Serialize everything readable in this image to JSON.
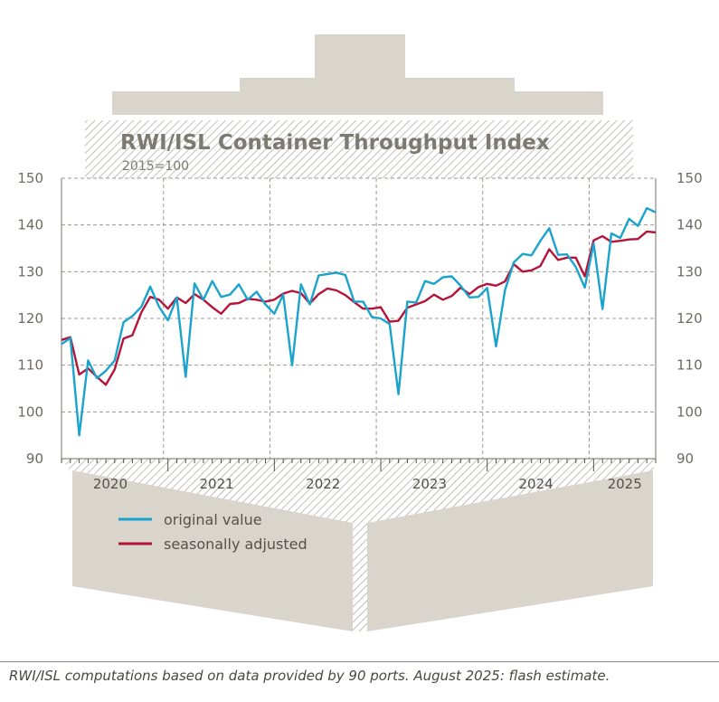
{
  "chart_data": {
    "type": "line",
    "title": "RWI/ISL Container Throughput Index",
    "subtitle": "2015=100",
    "ylim": [
      90,
      150
    ],
    "yticks": [
      90,
      100,
      110,
      120,
      130,
      140,
      150
    ],
    "x_range": [
      "2020-01",
      "2025-08"
    ],
    "year_labels": [
      "2020",
      "2021",
      "2022",
      "2023",
      "2024",
      "2025"
    ],
    "grid": true,
    "legend_position": "bottom-left",
    "colors": {
      "original": "#1aa3cc",
      "adjusted": "#b5143a",
      "ship": "#d9d5cc",
      "text": "#7d7a72"
    },
    "series": [
      {
        "name": "original value",
        "x": [
          "2020-01",
          "2020-02",
          "2020-03",
          "2020-04",
          "2020-05",
          "2020-06",
          "2020-07",
          "2020-08",
          "2020-09",
          "2020-10",
          "2020-11",
          "2020-12",
          "2021-01",
          "2021-02",
          "2021-03",
          "2021-04",
          "2021-05",
          "2021-06",
          "2021-07",
          "2021-08",
          "2021-09",
          "2021-10",
          "2021-11",
          "2021-12",
          "2022-01",
          "2022-02",
          "2022-03",
          "2022-04",
          "2022-05",
          "2022-06",
          "2022-07",
          "2022-08",
          "2022-09",
          "2022-10",
          "2022-11",
          "2022-12",
          "2023-01",
          "2023-02",
          "2023-03",
          "2023-04",
          "2023-05",
          "2023-06",
          "2023-07",
          "2023-08",
          "2023-09",
          "2023-10",
          "2023-11",
          "2023-12",
          "2024-01",
          "2024-02",
          "2024-03",
          "2024-04",
          "2024-05",
          "2024-06",
          "2024-07",
          "2024-08",
          "2024-09",
          "2024-10",
          "2024-11",
          "2024-12",
          "2025-01",
          "2025-02",
          "2025-03",
          "2025-04",
          "2025-05",
          "2025-06",
          "2025-07",
          "2025-08"
        ],
        "values": [
          114.5,
          115.8,
          95.0,
          111.0,
          107.2,
          108.8,
          111.0,
          119.2,
          120.5,
          122.5,
          126.8,
          122.5,
          119.6,
          124.5,
          107.5,
          127.5,
          124.0,
          128.0,
          124.6,
          125.1,
          127.3,
          124.0,
          125.7,
          123.0,
          121.0,
          125.1,
          110.0,
          127.3,
          123.0,
          129.2,
          129.5,
          129.8,
          129.3,
          123.6,
          123.6,
          120.3,
          120.0,
          118.8,
          103.8,
          123.6,
          123.4,
          128.0,
          127.4,
          128.8,
          129.0,
          127.0,
          124.5,
          124.6,
          126.5,
          114.0,
          126.0,
          132.0,
          133.8,
          133.5,
          136.6,
          139.3,
          133.6,
          133.7,
          131.0,
          126.6,
          136.0,
          122.0,
          138.2,
          137.2,
          141.3,
          139.8,
          143.6,
          142.7
        ]
      },
      {
        "name": "seasonally adjusted",
        "x": [
          "2020-01",
          "2020-02",
          "2020-03",
          "2020-04",
          "2020-05",
          "2020-06",
          "2020-07",
          "2020-08",
          "2020-09",
          "2020-10",
          "2020-11",
          "2020-12",
          "2021-01",
          "2021-02",
          "2021-03",
          "2021-04",
          "2021-05",
          "2021-06",
          "2021-07",
          "2021-08",
          "2021-09",
          "2021-10",
          "2021-11",
          "2021-12",
          "2022-01",
          "2022-02",
          "2022-03",
          "2022-04",
          "2022-05",
          "2022-06",
          "2022-07",
          "2022-08",
          "2022-09",
          "2022-10",
          "2022-11",
          "2022-12",
          "2023-01",
          "2023-02",
          "2023-03",
          "2023-04",
          "2023-05",
          "2023-06",
          "2023-07",
          "2023-08",
          "2023-09",
          "2023-10",
          "2023-11",
          "2023-12",
          "2024-01",
          "2024-02",
          "2024-03",
          "2024-04",
          "2024-05",
          "2024-06",
          "2024-07",
          "2024-08",
          "2024-09",
          "2024-10",
          "2024-11",
          "2024-12",
          "2025-01",
          "2025-02",
          "2025-03",
          "2025-04",
          "2025-05",
          "2025-06",
          "2025-07",
          "2025-08"
        ],
        "values": [
          115.4,
          116.0,
          108.0,
          109.3,
          107.5,
          105.8,
          109.1,
          115.7,
          116.4,
          121.3,
          124.6,
          124.0,
          122.1,
          124.5,
          123.3,
          125.2,
          124.0,
          122.4,
          121.0,
          123.1,
          123.3,
          124.2,
          124.0,
          123.6,
          124.0,
          125.3,
          125.9,
          125.4,
          123.2,
          125.2,
          126.4,
          126.0,
          125.0,
          123.5,
          122.1,
          122.1,
          122.4,
          119.3,
          119.5,
          122.3,
          123.0,
          123.7,
          125.1,
          124.0,
          124.8,
          126.6,
          125.2,
          126.7,
          127.4,
          127.0,
          127.9,
          131.6,
          130.0,
          130.3,
          131.2,
          134.8,
          132.5,
          133.0,
          133.0,
          129.0,
          136.7,
          137.6,
          136.4,
          136.6,
          136.9,
          137.0,
          138.6,
          138.4
        ]
      }
    ]
  },
  "footnote": "RWI/ISL computations based on data provided by 90 ports. August 2025: flash estimate."
}
